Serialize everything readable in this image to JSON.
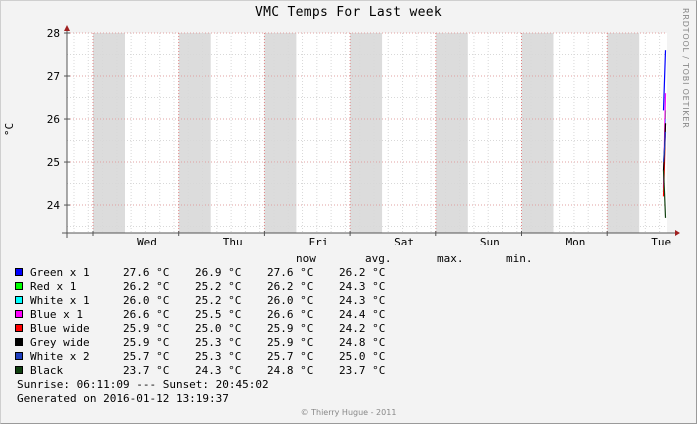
{
  "watermark": "RRDTOOL / TOBI OETIKER",
  "footer": "© Thierry Hugue - 2011",
  "sunrise_line": "Sunrise: 06:11:09 --- Sunset: 20:45:02",
  "generated_line": "Generated on 2016-01-12 13:19:37",
  "legend_headers": [
    "now",
    "avg.",
    "max.",
    "min."
  ],
  "chart_data": {
    "type": "line",
    "title": "VMC Temps For Last week",
    "ylabel": "°C",
    "xlabel": "",
    "ylim": [
      23.35,
      28.0
    ],
    "yticks": [
      24,
      25,
      26,
      27,
      28
    ],
    "xticks": [
      "Wed",
      "Thu",
      "Fri",
      "Sat",
      "Sun",
      "Mon",
      "Tue"
    ],
    "grid": true,
    "legend_position": "bottom",
    "series": [
      {
        "name": "Green x 1",
        "color": "#0000ff",
        "now": "27.6 °C",
        "avg": "26.9 °C",
        "max": "27.6 °C",
        "min": "26.2 °C",
        "recent": [
          26.2,
          26.9,
          27.6
        ]
      },
      {
        "name": "Red x 1",
        "color": "#00ff00",
        "now": "26.2 °C",
        "avg": "25.2 °C",
        "max": "26.2 °C",
        "min": "24.3 °C",
        "recent": [
          24.3,
          25.2,
          26.2
        ]
      },
      {
        "name": "White x 1",
        "color": "#00ffff",
        "now": "26.0 °C",
        "avg": "25.2 °C",
        "max": "26.0 °C",
        "min": "24.3 °C",
        "recent": [
          24.3,
          25.2,
          26.0
        ]
      },
      {
        "name": "Blue x 1",
        "color": "#ff00ff",
        "now": "26.6 °C",
        "avg": "25.5 °C",
        "max": "26.6 °C",
        "min": "24.4 °C",
        "recent": [
          24.4,
          25.5,
          26.6
        ]
      },
      {
        "name": "Blue wide",
        "color": "#ff0000",
        "now": "25.9 °C",
        "avg": "25.0 °C",
        "max": "25.9 °C",
        "min": "24.2 °C",
        "recent": [
          24.2,
          25.0,
          25.9
        ]
      },
      {
        "name": "Grey wide",
        "color": "#000000",
        "now": "25.9 °C",
        "avg": "25.3 °C",
        "max": "25.9 °C",
        "min": "24.8 °C",
        "recent": [
          24.8,
          25.3,
          25.9
        ]
      },
      {
        "name": "White x 2",
        "color": "#1f3fbf",
        "now": "25.7 °C",
        "avg": "25.3 °C",
        "max": "25.7 °C",
        "min": "25.0 °C",
        "recent": [
          25.0,
          25.3,
          25.7
        ]
      },
      {
        "name": "Black",
        "color": "#0f3f0f",
        "now": "23.7 °C",
        "avg": "24.3 °C",
        "max": "24.8 °C",
        "min": "23.7 °C",
        "recent": [
          24.8,
          24.3,
          23.7
        ]
      }
    ]
  }
}
